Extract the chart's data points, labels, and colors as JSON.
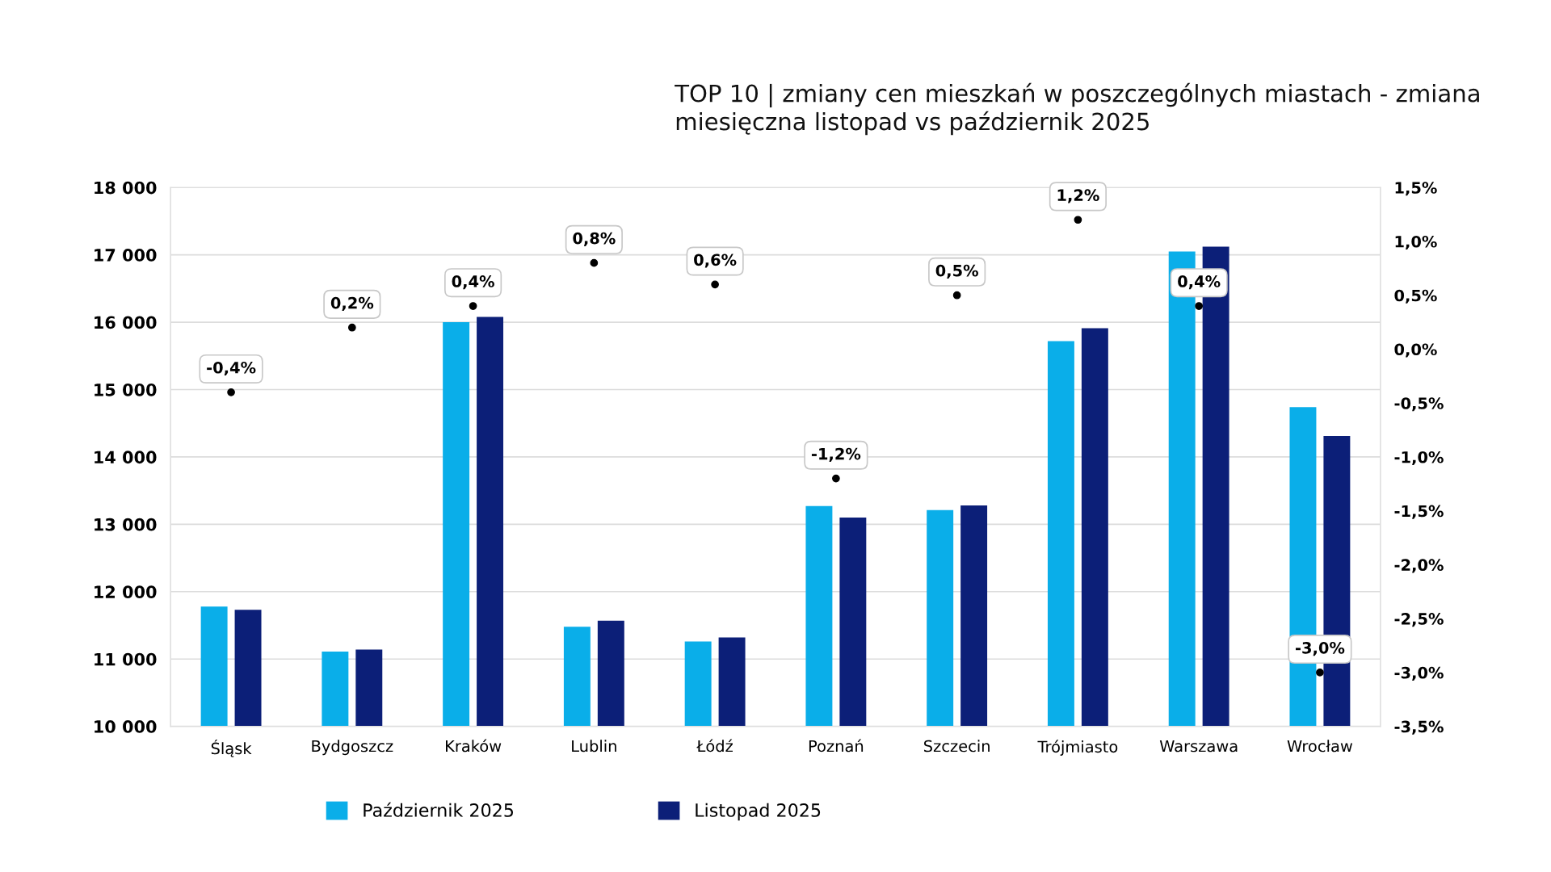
{
  "chart_data": {
    "type": "bar",
    "title": "TOP 10 | zmiany cen mieszkań w poszczególnych miastach - zmiana miesięczna listopad vs październik 2025",
    "categories": [
      "Śląsk",
      "Bydgoszcz",
      "Kraków",
      "Lublin",
      "Łódź",
      "Poznań",
      "Szczecin",
      "Trójmiasto",
      "Warszawa",
      "Wrocław"
    ],
    "series": [
      {
        "name": "Październik 2025",
        "color": "#0aaee9",
        "values": [
          11780,
          11110,
          16000,
          11480,
          11260,
          13270,
          13210,
          15720,
          17050,
          14740
        ]
      },
      {
        "name": "Listopad 2025",
        "color": "#0c1f78",
        "values": [
          11730,
          11140,
          16080,
          11570,
          11320,
          13100,
          13280,
          15910,
          17120,
          14310
        ]
      },
      {
        "type": "scatter",
        "axis": "y2",
        "color": "#000000",
        "marker": "circle",
        "values": [
          -0.4,
          0.2,
          0.4,
          0.8,
          0.6,
          -1.2,
          0.5,
          1.2,
          0.4,
          -3.0
        ],
        "value_labels": [
          "-0,4%",
          "0,2%",
          "0,4%",
          "0,8%",
          "0,6%",
          "-1,2%",
          "0,5%",
          "1,2%",
          "0,4%",
          "-3,0%"
        ]
      }
    ],
    "ylim": [
      10000,
      18000
    ],
    "yticks": [
      {
        "value": 10000,
        "label": "10 000"
      },
      {
        "value": 11000,
        "label": "11 000"
      },
      {
        "value": 12000,
        "label": "12 000"
      },
      {
        "value": 13000,
        "label": "13 000"
      },
      {
        "value": 14000,
        "label": "14 000"
      },
      {
        "value": 15000,
        "label": "15 000"
      },
      {
        "value": 16000,
        "label": "16 000"
      },
      {
        "value": 17000,
        "label": "17 000"
      },
      {
        "value": 18000,
        "label": "18 000"
      }
    ],
    "y2lim": [
      -3.5,
      1.5
    ],
    "y2ticks": [
      {
        "value": -3.5,
        "label": "-3,5%"
      },
      {
        "value": -3.0,
        "label": "-3,0%"
      },
      {
        "value": -2.5,
        "label": "-2,5%"
      },
      {
        "value": -2.0,
        "label": "-2,0%"
      },
      {
        "value": -1.5,
        "label": "-1,5%"
      },
      {
        "value": -1.0,
        "label": "-1,0%"
      },
      {
        "value": -0.5,
        "label": "-0,5%"
      },
      {
        "value": 0.0,
        "label": "0,0%"
      },
      {
        "value": 0.5,
        "label": "0,5%"
      },
      {
        "value": 1.0,
        "label": "1,0%"
      },
      {
        "value": 1.5,
        "label": "1,5%"
      }
    ],
    "grid": "y",
    "legend": "bottom"
  }
}
